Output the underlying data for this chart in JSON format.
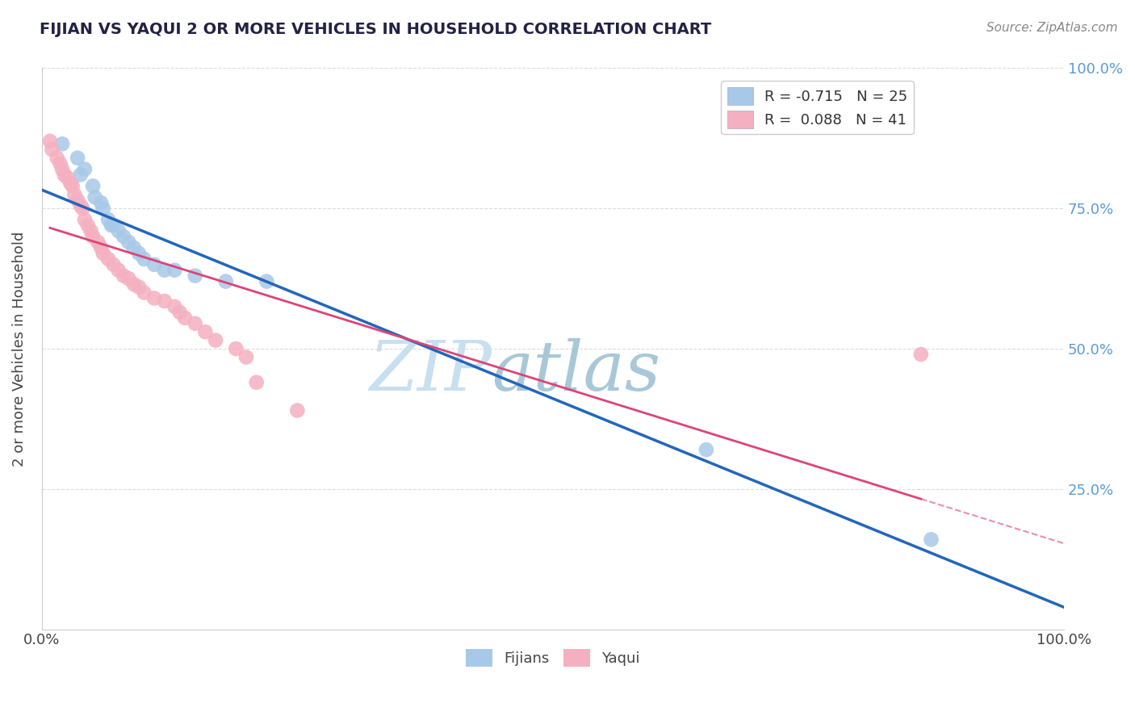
{
  "title": "FIJIAN VS YAQUI 2 OR MORE VEHICLES IN HOUSEHOLD CORRELATION CHART",
  "source_text": "Source: ZipAtlas.com",
  "ylabel": "2 or more Vehicles in Household",
  "xlim": [
    0,
    1.0
  ],
  "ylim": [
    0,
    1.0
  ],
  "watermark_zip": "ZIP",
  "watermark_atlas": "atlas",
  "legend_label_fijian": "R = -0.715   N = 25",
  "legend_label_yaqui": "R =  0.088   N = 41",
  "fijian_color": "#a8c8e8",
  "yaqui_color": "#f4b0c0",
  "fijian_scatter": [
    [
      0.02,
      0.865
    ],
    [
      0.035,
      0.84
    ],
    [
      0.038,
      0.81
    ],
    [
      0.042,
      0.82
    ],
    [
      0.05,
      0.79
    ],
    [
      0.052,
      0.77
    ],
    [
      0.058,
      0.76
    ],
    [
      0.06,
      0.75
    ],
    [
      0.065,
      0.73
    ],
    [
      0.068,
      0.72
    ],
    [
      0.07,
      0.72
    ],
    [
      0.075,
      0.71
    ],
    [
      0.08,
      0.7
    ],
    [
      0.085,
      0.69
    ],
    [
      0.09,
      0.68
    ],
    [
      0.095,
      0.67
    ],
    [
      0.1,
      0.66
    ],
    [
      0.11,
      0.65
    ],
    [
      0.12,
      0.64
    ],
    [
      0.13,
      0.64
    ],
    [
      0.15,
      0.63
    ],
    [
      0.18,
      0.62
    ],
    [
      0.22,
      0.62
    ],
    [
      0.65,
      0.32
    ],
    [
      0.87,
      0.16
    ]
  ],
  "yaqui_scatter": [
    [
      0.008,
      0.87
    ],
    [
      0.01,
      0.855
    ],
    [
      0.015,
      0.84
    ],
    [
      0.018,
      0.83
    ],
    [
      0.02,
      0.82
    ],
    [
      0.022,
      0.81
    ],
    [
      0.025,
      0.805
    ],
    [
      0.028,
      0.795
    ],
    [
      0.03,
      0.79
    ],
    [
      0.032,
      0.775
    ],
    [
      0.035,
      0.765
    ],
    [
      0.038,
      0.755
    ],
    [
      0.04,
      0.75
    ],
    [
      0.042,
      0.73
    ],
    [
      0.045,
      0.72
    ],
    [
      0.048,
      0.71
    ],
    [
      0.05,
      0.7
    ],
    [
      0.055,
      0.69
    ],
    [
      0.058,
      0.68
    ],
    [
      0.06,
      0.67
    ],
    [
      0.065,
      0.66
    ],
    [
      0.07,
      0.65
    ],
    [
      0.075,
      0.64
    ],
    [
      0.08,
      0.63
    ],
    [
      0.085,
      0.625
    ],
    [
      0.09,
      0.615
    ],
    [
      0.095,
      0.61
    ],
    [
      0.1,
      0.6
    ],
    [
      0.11,
      0.59
    ],
    [
      0.12,
      0.585
    ],
    [
      0.13,
      0.575
    ],
    [
      0.135,
      0.565
    ],
    [
      0.14,
      0.555
    ],
    [
      0.15,
      0.545
    ],
    [
      0.16,
      0.53
    ],
    [
      0.17,
      0.515
    ],
    [
      0.19,
      0.5
    ],
    [
      0.2,
      0.485
    ],
    [
      0.21,
      0.44
    ],
    [
      0.25,
      0.39
    ],
    [
      0.86,
      0.49
    ]
  ],
  "fijian_line_color": "#2266bb",
  "yaqui_line_color": "#dd4477",
  "yaqui_line_dash_color": "#dd4477",
  "background_color": "#ffffff",
  "grid_color": "#cccccc",
  "title_color": "#222244",
  "source_color": "#888888",
  "watermark_zip_color": "#c8dff0",
  "watermark_atlas_color": "#a8c8d8"
}
